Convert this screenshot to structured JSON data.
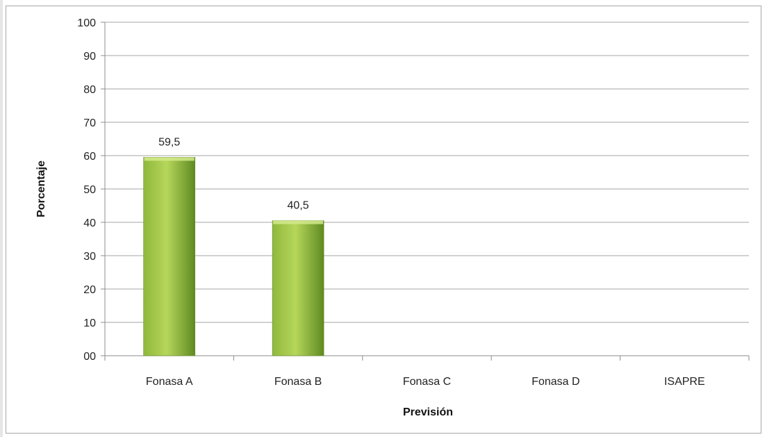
{
  "chart_data": {
    "type": "bar",
    "categories": [
      "Fonasa A",
      "Fonasa B",
      "Fonasa C",
      "Fonasa D",
      "ISAPRE"
    ],
    "values": [
      59.5,
      40.5,
      null,
      null,
      null
    ],
    "data_labels": [
      "59,5",
      "40,5",
      "",
      "",
      ""
    ],
    "xlabel": "Previsión",
    "ylabel": "Porcentaje",
    "ylim": [
      0,
      100
    ],
    "yticks": [
      0,
      10,
      20,
      30,
      40,
      50,
      60,
      70,
      80,
      90,
      100
    ],
    "ytick_labels": [
      "00",
      "10",
      "20",
      "30",
      "40",
      "50",
      "60",
      "70",
      "80",
      "90",
      "100"
    ],
    "grid": true,
    "legend": "none",
    "colors": {
      "bar_light": "#b5d65a",
      "bar_mid": "#8fb83c",
      "bar_dark": "#5f8a22",
      "gridline": "#a6a6a6",
      "axis": "#8c8c8c"
    }
  }
}
